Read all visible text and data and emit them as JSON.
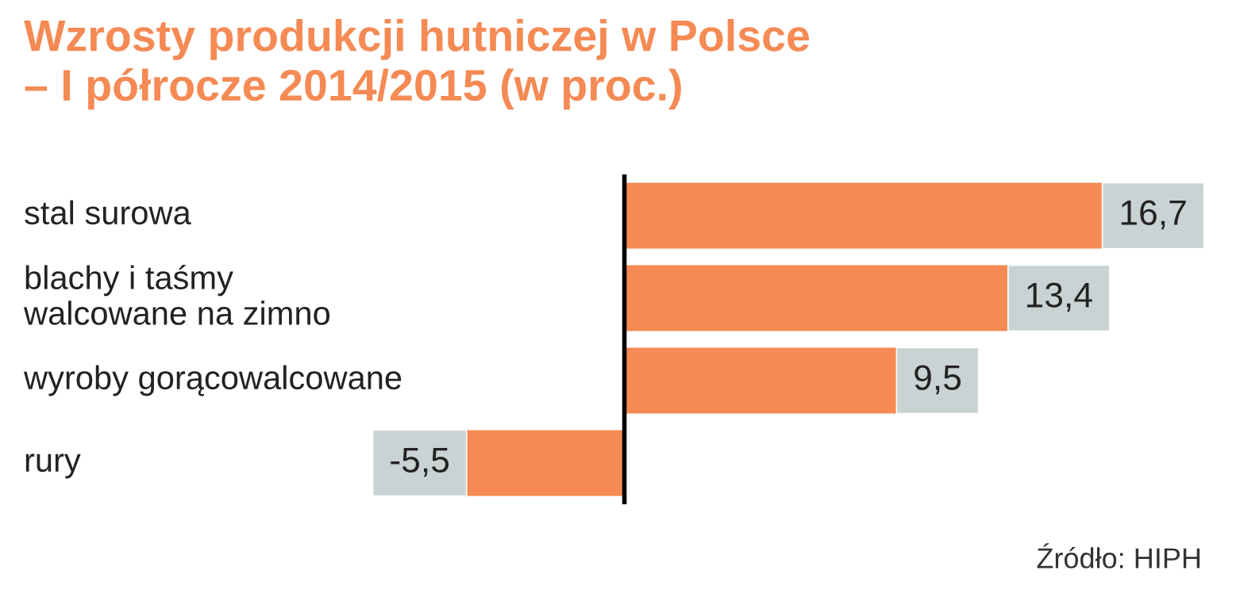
{
  "chart_data": {
    "type": "bar",
    "orientation": "horizontal",
    "title": "Wzrosty produkcji hutniczej w Polsce\n– I półrocze 2014/2015 (w proc.)",
    "categories": [
      "stal surowa",
      "blachy i taśmy\nwalcowane na zimno",
      "wyroby gorącowalcowane",
      "rury"
    ],
    "values": [
      16.7,
      13.4,
      9.5,
      -5.5
    ],
    "value_labels": [
      "16,7",
      "13,4",
      "9,5",
      "-5,5"
    ],
    "color": "#f58a54",
    "annotations": [
      "Źródło: HIPH"
    ],
    "legend": false
  }
}
